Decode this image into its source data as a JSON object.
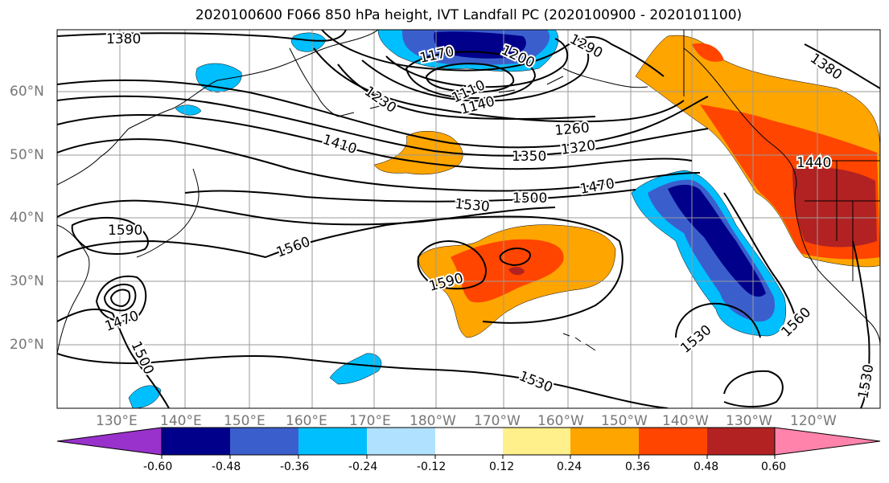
{
  "title": "2020100600 F066 850 hPa height, IVT Landfall PC (2020100900 - 2020101100)",
  "lat_labels": [
    "60°N",
    "50°N",
    "40°N",
    "30°N",
    "20°N"
  ],
  "lon_labels": [
    "130°E",
    "140°E",
    "150°E",
    "160°E",
    "170°E",
    "180°W",
    "170°W",
    "160°W",
    "150°W",
    "140°W",
    "130°W",
    "120°W"
  ],
  "contour_labels": [
    "1380",
    "1290",
    "1170",
    "1200",
    "1110",
    "1140",
    "1230",
    "1260",
    "1320",
    "1350",
    "1410",
    "1470",
    "1500",
    "1530",
    "1560",
    "1590",
    "1590",
    "1470",
    "1500",
    "1530",
    "1530",
    "1560",
    "1380",
    "1440",
    "1530"
  ],
  "colorbar": {
    "ticks": [
      "-0.60",
      "-0.48",
      "-0.36",
      "-0.24",
      "-0.12",
      "0.12",
      "0.24",
      "0.36",
      "0.48",
      "0.60"
    ],
    "colors": [
      "#9932cc",
      "#00008b",
      "#3a5fcd",
      "#00bfff",
      "#b0e2ff",
      "#ffffff",
      "#fff08b",
      "#ffa500",
      "#ff4500",
      "#b22222",
      "#ff83ab"
    ]
  }
}
